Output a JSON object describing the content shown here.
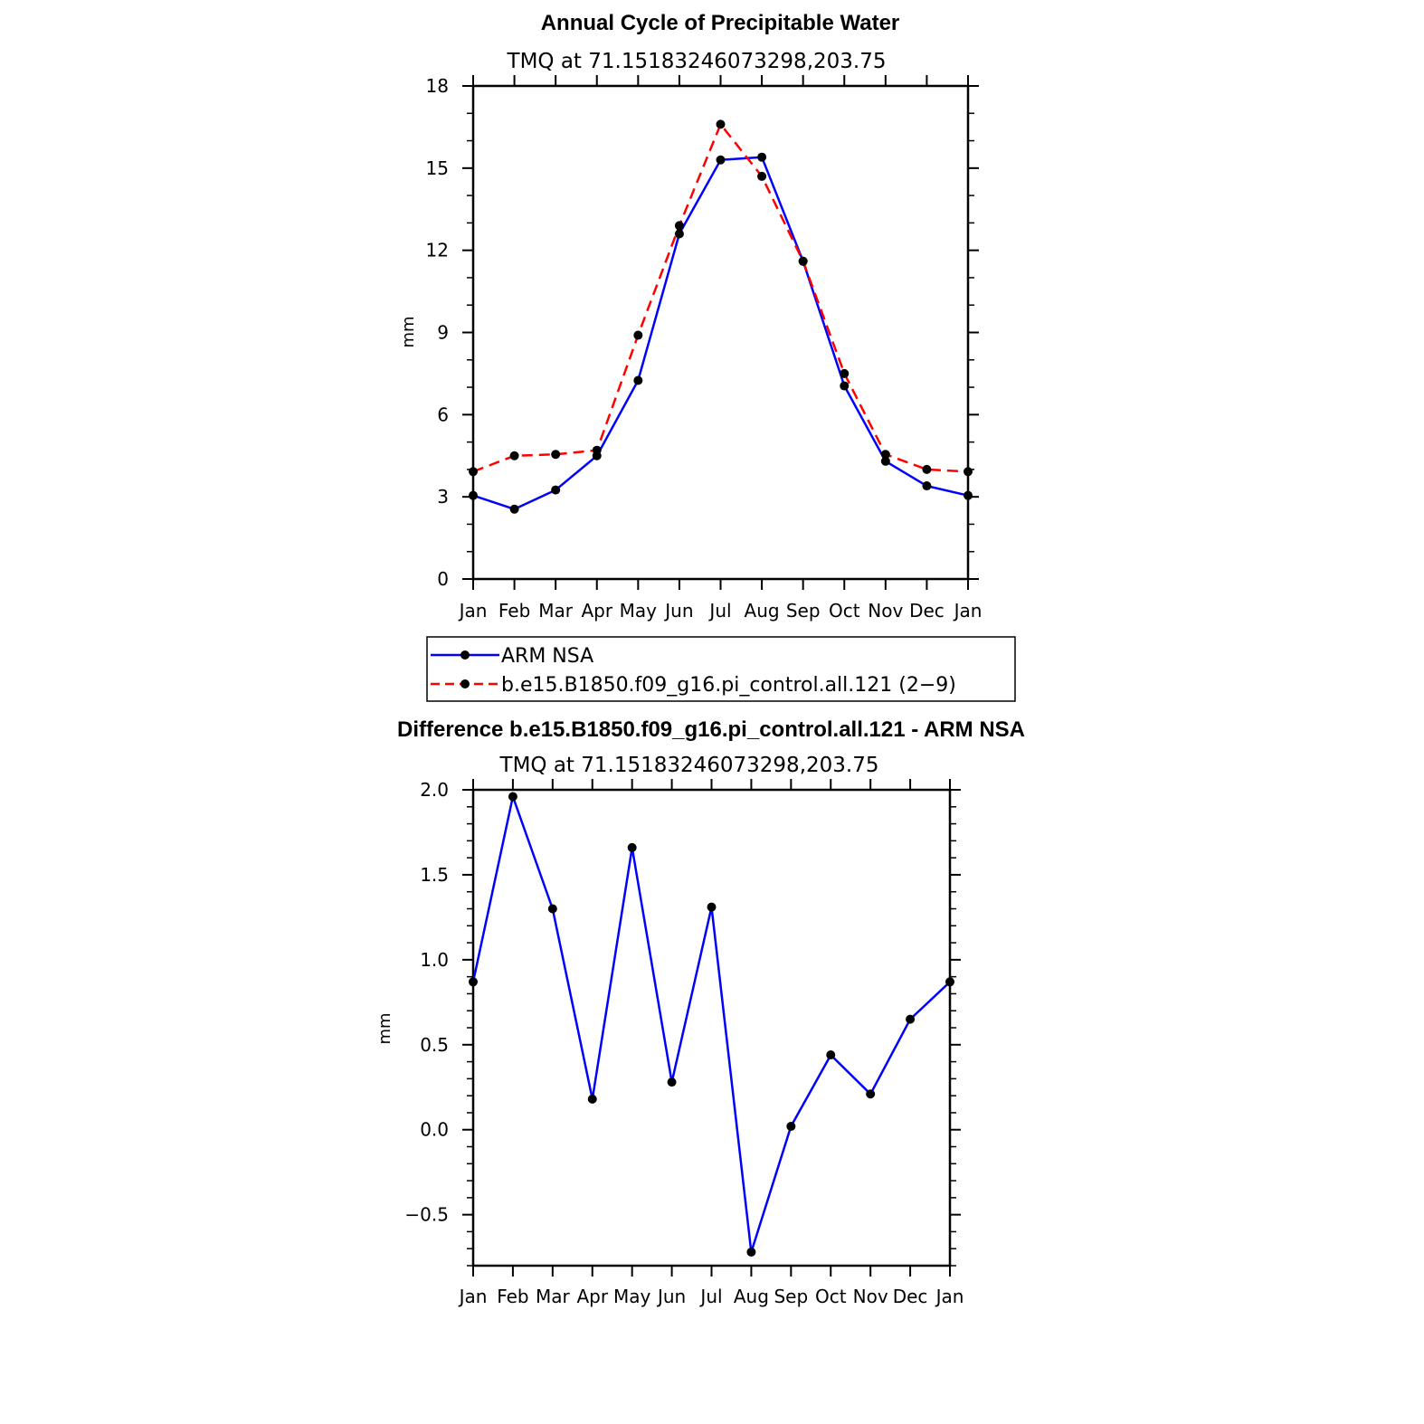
{
  "chart_data": [
    {
      "type": "line",
      "title": "Annual Cycle of Precipitable Water",
      "subtitle": "TMQ  at  71.15183246073298,203.75",
      "ylabel": "mm",
      "xlabel": "",
      "categories": [
        "Jan",
        "Feb",
        "Mar",
        "Apr",
        "May",
        "Jun",
        "Jul",
        "Aug",
        "Sep",
        "Oct",
        "Nov",
        "Dec",
        "Jan"
      ],
      "ylim": [
        0,
        18
      ],
      "yticks": [
        "0",
        "3",
        "6",
        "9",
        "12",
        "15",
        "18"
      ],
      "series": [
        {
          "name": "ARM  NSA",
          "color": "#0000ff",
          "style": "solid",
          "marker": "dot",
          "values": [
            3.05,
            2.55,
            3.25,
            4.5,
            7.25,
            12.6,
            15.3,
            15.4,
            11.6,
            7.05,
            4.3,
            3.4,
            3.05
          ]
        },
        {
          "name": "b.e15.B1850.f09_g16.pi_control.all.121  (2−9)",
          "color": "#ff0000",
          "style": "dashed",
          "marker": "dot",
          "values": [
            3.92,
            4.5,
            4.55,
            4.7,
            8.9,
            12.9,
            16.6,
            14.7,
            11.6,
            7.5,
            4.55,
            4.0,
            3.92
          ]
        }
      ],
      "legend_position": "bottom"
    },
    {
      "type": "line",
      "title": "Difference b.e15.B1850.f09_g16.pi_control.all.121 - ARM NSA",
      "subtitle": "TMQ  at  71.15183246073298,203.75",
      "ylabel": "mm",
      "xlabel": "",
      "categories": [
        "Jan",
        "Feb",
        "Mar",
        "Apr",
        "May",
        "Jun",
        "Jul",
        "Aug",
        "Sep",
        "Oct",
        "Nov",
        "Dec",
        "Jan"
      ],
      "ylim": [
        -0.8,
        2.0
      ],
      "yticks": [
        "−0.5",
        "0.0",
        "0.5",
        "1.0",
        "1.5",
        "2.0"
      ],
      "ytick_values": [
        -0.5,
        0.0,
        0.5,
        1.0,
        1.5,
        2.0
      ],
      "series": [
        {
          "color": "#0000ff",
          "style": "solid",
          "marker": "dot",
          "values": [
            0.87,
            1.96,
            1.3,
            0.18,
            1.66,
            0.28,
            1.31,
            -0.72,
            0.02,
            0.44,
            0.21,
            0.65,
            0.87
          ]
        }
      ]
    }
  ]
}
